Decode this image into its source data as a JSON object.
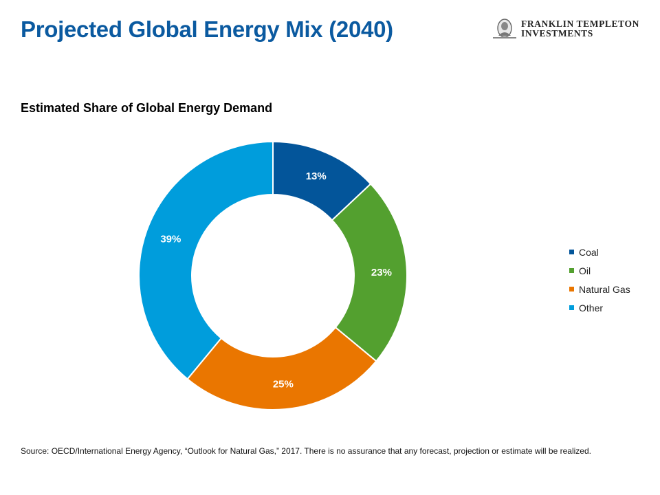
{
  "header": {
    "title": "Projected Global Energy Mix (2040)",
    "logo": {
      "icon": "franklin-medallion-icon",
      "line1": "FRANKLIN TEMPLETON",
      "line2": "INVESTMENTS"
    }
  },
  "chart_data": {
    "type": "pie",
    "subtype": "donut",
    "title": "Estimated Share of Global Energy Demand",
    "categories": [
      "Coal",
      "Oil",
      "Natural Gas",
      "Other"
    ],
    "values": [
      13,
      23,
      25,
      39
    ],
    "labels": [
      "13%",
      "23%",
      "25%",
      "39%"
    ],
    "colors": [
      "#03559a",
      "#53a02f",
      "#ea7600",
      "#009ddc"
    ],
    "start_angle_deg": 0,
    "direction": "clockwise",
    "legend_position": "right"
  },
  "footer": {
    "source": "Source: OECD/International Energy Agency, “Outlook for Natural Gas,” 2017. There is no assurance that any forecast, projection or estimate will be realized."
  }
}
